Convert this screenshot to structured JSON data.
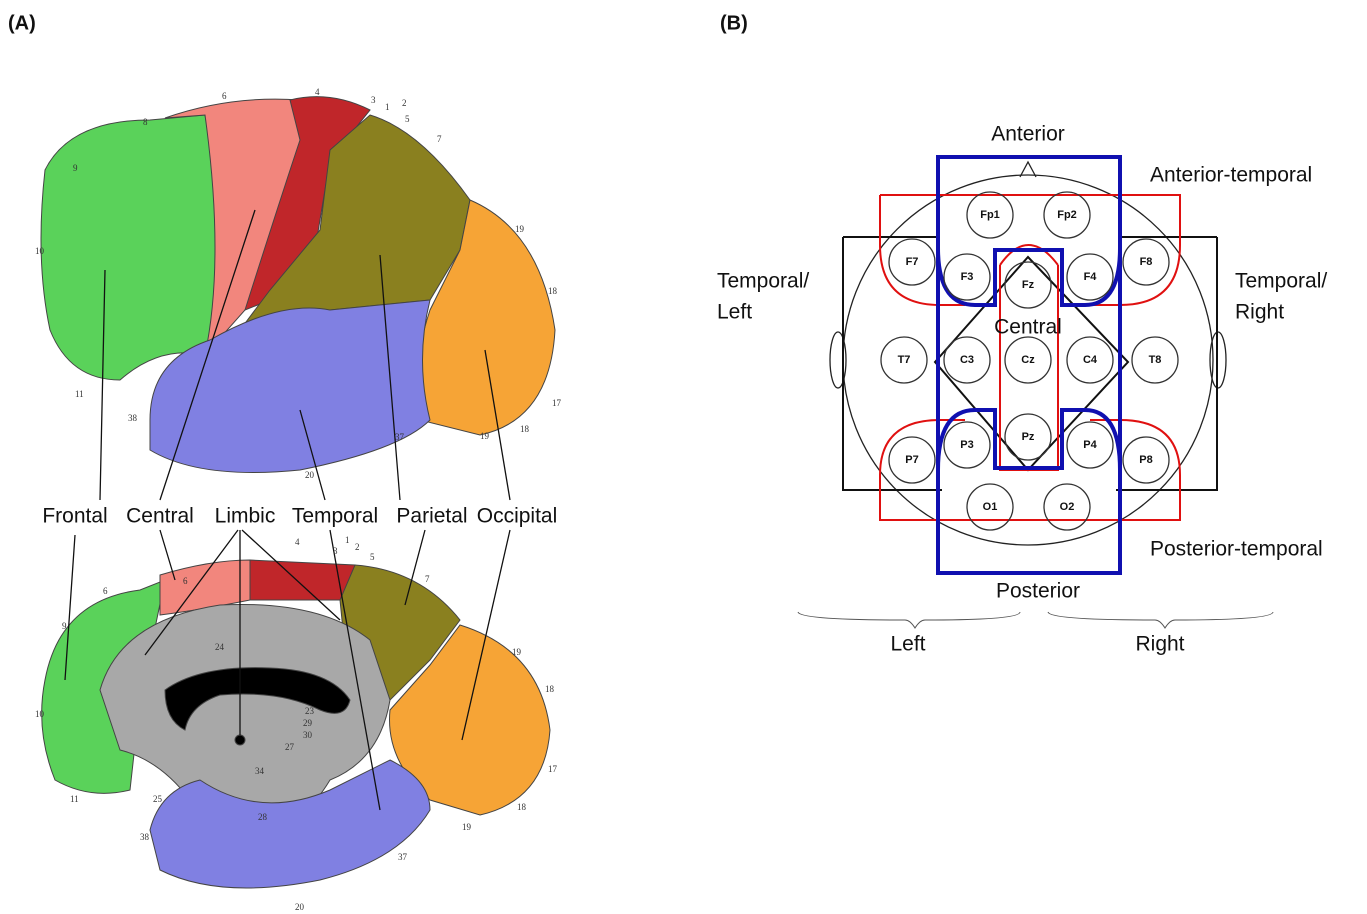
{
  "panel_a": {
    "label": "(A)",
    "regions": [
      "Frontal",
      "Central",
      "Limbic",
      "Temporal",
      "Parietal",
      "Occipital"
    ],
    "lateral_numbers": [
      "6",
      "4",
      "3",
      "1",
      "2",
      "5",
      "7",
      "8",
      "9",
      "10",
      "11",
      "19",
      "18",
      "17",
      "18",
      "19",
      "37",
      "20",
      "38"
    ],
    "medial_numbers": [
      "6",
      "4",
      "3",
      "1",
      "2",
      "5",
      "7",
      "6",
      "9",
      "10",
      "11",
      "25",
      "19",
      "18",
      "17",
      "18",
      "19",
      "37",
      "20",
      "38",
      "24",
      "23",
      "29",
      "30",
      "27",
      "34",
      "28"
    ]
  },
  "panel_b": {
    "label": "(B)",
    "region_labels": {
      "anterior": "Anterior",
      "anterior_temporal": "Anterior-temporal",
      "temporal_left": [
        "Temporal/",
        "Left"
      ],
      "temporal_right": [
        "Temporal/",
        "Right"
      ],
      "central": "Central",
      "posterior_temporal": "Posterior-temporal",
      "posterior": "Posterior"
    },
    "electrodes": [
      "Fp1",
      "Fp2",
      "F7",
      "F3",
      "Fz",
      "F4",
      "F8",
      "T7",
      "C3",
      "Cz",
      "C4",
      "T8",
      "P7",
      "P3",
      "Pz",
      "P4",
      "P8",
      "O1",
      "O2"
    ],
    "sides": [
      "Left",
      "Right"
    ]
  }
}
